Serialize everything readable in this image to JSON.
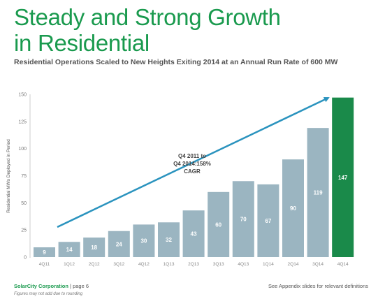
{
  "slide": {
    "title_line1": "Steady and Strong Growth",
    "title_line2": "in Residential",
    "subtitle": "Residential Operations Scaled to New Heights Exiting 2014 at an Annual Run Rate of 600 MW"
  },
  "footer": {
    "brand": "SolarCity Corporation",
    "page": "| page 6",
    "note": "Figures may not add due to rounding",
    "right": "See Appendix slides for relevant definitions"
  },
  "colors": {
    "title_green": "#1a9a4e",
    "bar_gray": "#9bb5c1",
    "bar_highlight": "#1a8a4a",
    "arrow": "#2a93be"
  },
  "chart_data": {
    "type": "bar",
    "categories": [
      "4Q11",
      "1Q12",
      "2Q12",
      "3Q12",
      "4Q12",
      "1Q13",
      "2Q13",
      "3Q13",
      "4Q13",
      "1Q14",
      "2Q14",
      "3Q14",
      "4Q14"
    ],
    "values": [
      9,
      14,
      18,
      24,
      30,
      32,
      43,
      60,
      70,
      67,
      90,
      119,
      147
    ],
    "data_labels": [
      "9",
      "14",
      "18",
      "24",
      "30",
      "32",
      "43",
      "60",
      "70",
      "67",
      "90",
      "119",
      "147"
    ],
    "highlight_index": 12,
    "ylabel": "Residential MWs Deployed in Period",
    "xlabel": "",
    "ylim": [
      0,
      150
    ],
    "yticks": [
      0,
      25,
      50,
      75,
      100,
      125,
      150
    ],
    "annotation": {
      "lines": [
        "Q4 2011 to",
        "Q4 2014:158%",
        "CAGR"
      ]
    },
    "grid": false
  }
}
